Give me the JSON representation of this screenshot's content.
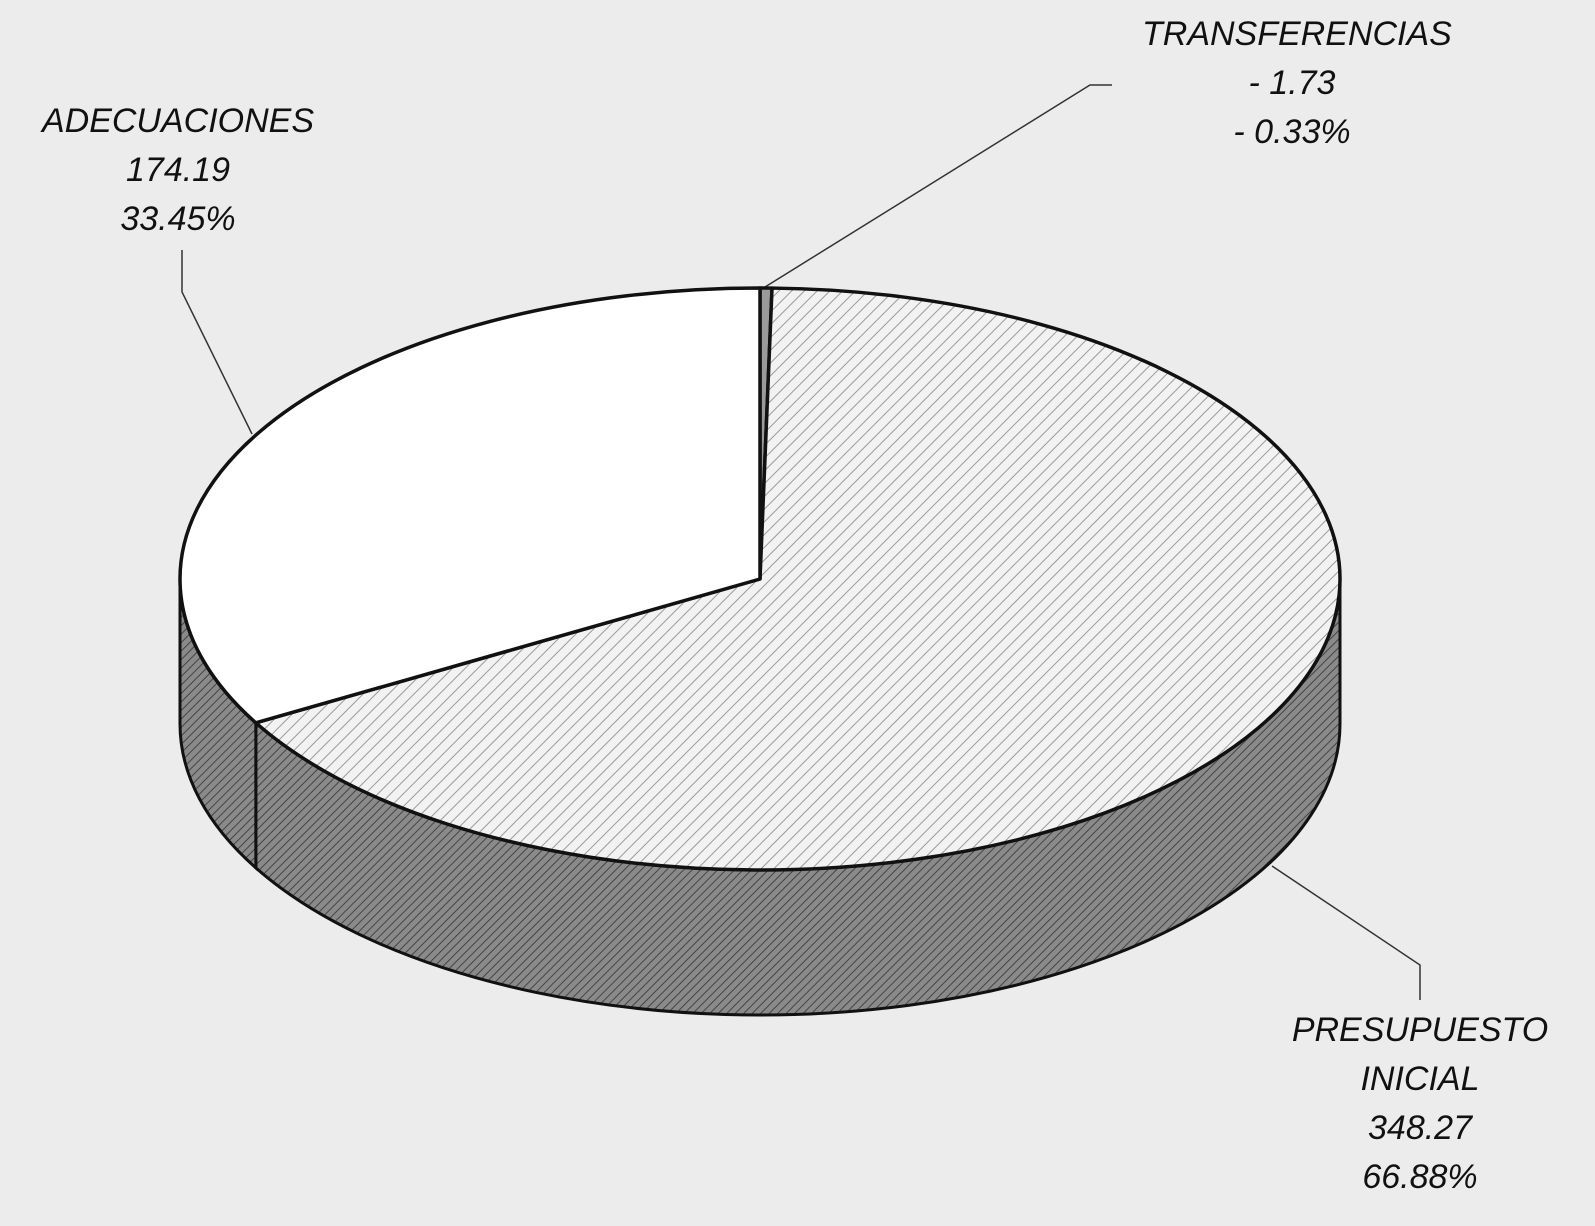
{
  "chart_data": {
    "type": "pie",
    "categories": [
      "TRANSFERENCIAS",
      "PRESUPUESTO INICIAL",
      "ADECUACIONES"
    ],
    "values": [
      -1.73,
      348.27,
      174.19
    ],
    "value_labels": [
      "- 1.73",
      "348.27",
      "174.19"
    ],
    "percentages": [
      -0.33,
      66.88,
      33.45
    ],
    "percentage_labels": [
      "- 0.33%",
      "66.88%",
      "33.45%"
    ],
    "colors": [
      "#9a9a9a",
      "#dcdcdc",
      "#ffffff"
    ]
  }
}
